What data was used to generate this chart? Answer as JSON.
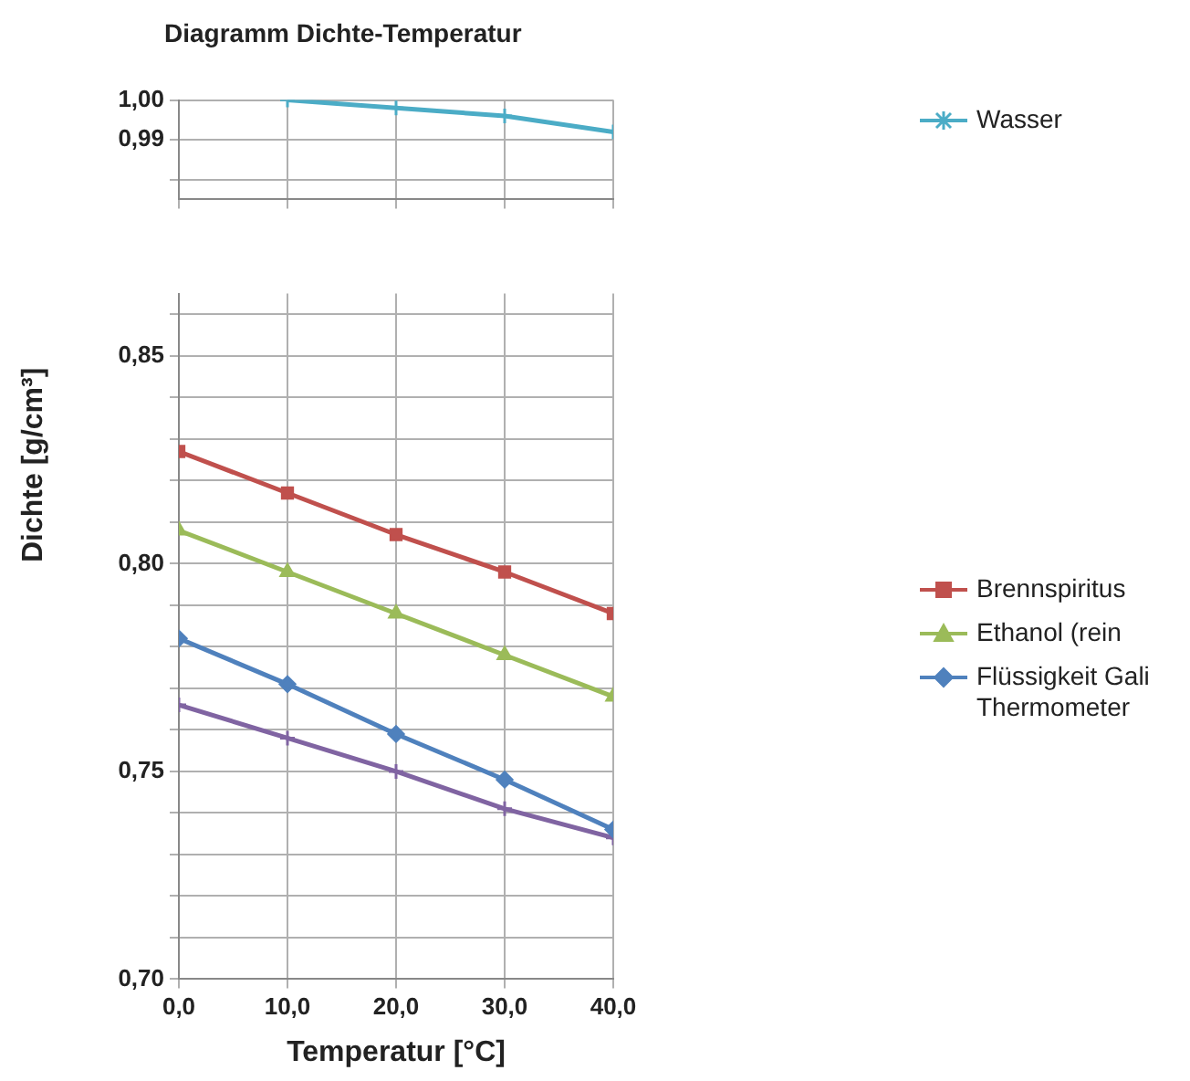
{
  "chart_data": [
    {
      "type": "line",
      "title": "Diagramm Dichte-Temperatur",
      "xlim": [
        0,
        40
      ],
      "ylim": [
        0.975,
        1.0
      ],
      "xticks": [
        0,
        10,
        20,
        30,
        40
      ],
      "yticks": [
        {
          "value": 0.98,
          "label": null
        },
        {
          "value": 0.99,
          "label": "0,99"
        },
        {
          "value": 1.0,
          "label": "1,00"
        }
      ],
      "tick_labels": "y",
      "grid": true,
      "legend": "right",
      "line_style": "solid",
      "series": [
        {
          "name": "Wasser",
          "color": "#4bacc6",
          "marker": "cross",
          "x": [
            10,
            20,
            30,
            40
          ],
          "values": [
            1.0,
            0.998,
            0.996,
            0.992
          ]
        }
      ]
    },
    {
      "type": "line",
      "xlabel": "Temperatur [°C]",
      "ylabel": "Dichte [g/cm³]",
      "xlim": [
        0,
        40
      ],
      "ylim": [
        0.7,
        0.865
      ],
      "xticks": [
        {
          "value": 0,
          "label": "0,0"
        },
        {
          "value": 10,
          "label": "10,0"
        },
        {
          "value": 20,
          "label": "20,0"
        },
        {
          "value": 30,
          "label": "30,0"
        },
        {
          "value": 40,
          "label": "40,0"
        }
      ],
      "yticks": [
        {
          "value": 0.7,
          "label": "0,70"
        },
        {
          "value": 0.71,
          "label": null
        },
        {
          "value": 0.72,
          "label": null
        },
        {
          "value": 0.73,
          "label": null
        },
        {
          "value": 0.74,
          "label": null
        },
        {
          "value": 0.75,
          "label": "0,75"
        },
        {
          "value": 0.76,
          "label": null
        },
        {
          "value": 0.77,
          "label": null
        },
        {
          "value": 0.78,
          "label": null
        },
        {
          "value": 0.79,
          "label": null
        },
        {
          "value": 0.8,
          "label": "0,80"
        },
        {
          "value": 0.81,
          "label": null
        },
        {
          "value": 0.82,
          "label": null
        },
        {
          "value": 0.83,
          "label": null
        },
        {
          "value": 0.84,
          "label": null
        },
        {
          "value": 0.85,
          "label": "0,85"
        },
        {
          "value": 0.86,
          "label": null
        }
      ],
      "grid": true,
      "legend": "right",
      "line_style": "solid",
      "series": [
        {
          "name": "Brennspiritus",
          "color": "#c0504d",
          "marker": "square",
          "x": [
            0,
            10,
            20,
            30,
            40
          ],
          "values": [
            0.827,
            0.817,
            0.807,
            0.798,
            0.788
          ]
        },
        {
          "name": "Ethanol (rein",
          "color": "#9bbb59",
          "marker": "triangle",
          "x": [
            0,
            10,
            20,
            30,
            40
          ],
          "values": [
            0.808,
            0.798,
            0.788,
            0.778,
            0.768
          ]
        },
        {
          "name": "Flüssigkeit Gali Thermometer",
          "color": "#4f81bd",
          "marker": "diamond",
          "x": [
            0,
            10,
            20,
            30,
            40
          ],
          "values": [
            0.782,
            0.771,
            0.759,
            0.748,
            0.736
          ]
        },
        {
          "color": "#8064a2",
          "marker": "cross",
          "x": [
            0,
            10,
            20,
            30,
            40
          ],
          "values": [
            0.766,
            0.758,
            0.75,
            0.741,
            0.734
          ]
        }
      ]
    }
  ]
}
